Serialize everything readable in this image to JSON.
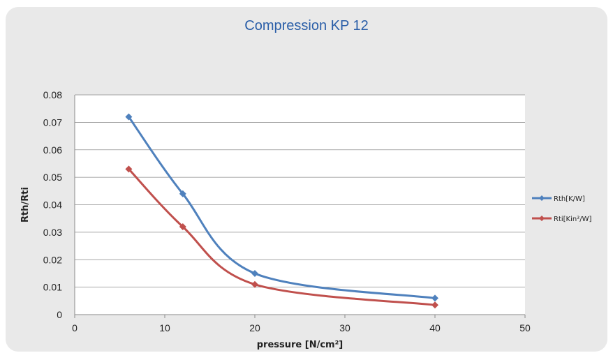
{
  "chart_data": {
    "type": "line",
    "title": "Compression KP 12",
    "xlabel": "pressure [N/cm²]",
    "ylabel": "Rth/Rti",
    "xlim": [
      0,
      50
    ],
    "ylim": [
      0,
      0.08
    ],
    "x_ticks": [
      "0",
      "10",
      "20",
      "30",
      "40",
      "50"
    ],
    "y_ticks": [
      "0",
      "0.01",
      "0.02",
      "0.03",
      "0.04",
      "0.05",
      "0.06",
      "0.07",
      "0.08"
    ],
    "grid": "horizontal",
    "legend_position": "right",
    "smooth": true,
    "series": [
      {
        "name": "Rth[K/W]",
        "color": "#4f81bd",
        "marker": "diamond",
        "x": [
          6,
          12,
          20,
          40
        ],
        "y": [
          0.072,
          0.044,
          0.015,
          0.006
        ]
      },
      {
        "name": "Rti[Kin²/W]",
        "color": "#c0504d",
        "marker": "diamond",
        "x": [
          6,
          12,
          20,
          40
        ],
        "y": [
          0.053,
          0.032,
          0.011,
          0.0035
        ]
      }
    ]
  }
}
